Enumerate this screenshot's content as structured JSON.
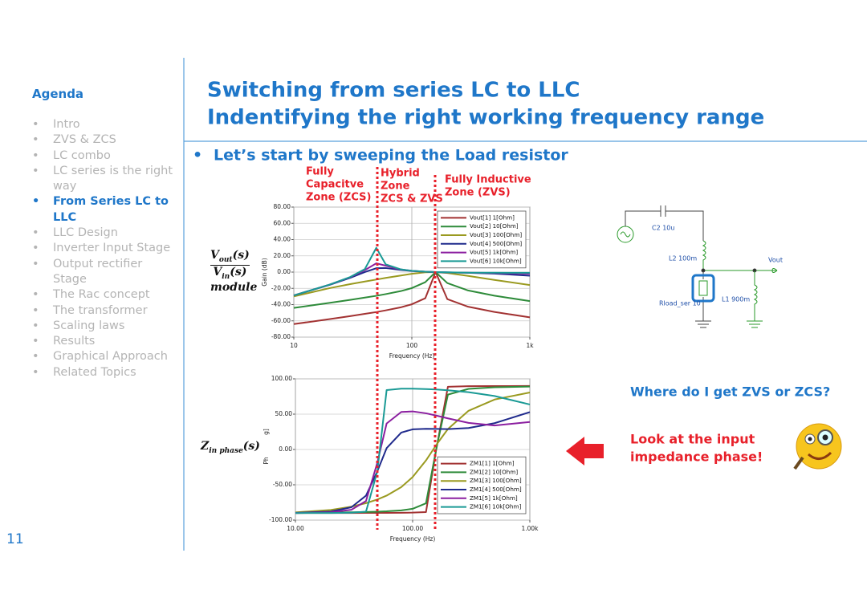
{
  "sidebar": {
    "title": "Agenda",
    "active": 4,
    "items": [
      "Intro",
      "ZVS & ZCS",
      "LC combo",
      "LC series is the right way",
      "From Series LC to LLC",
      "LLC Design",
      "Inverter Input Stage",
      "Output rectifier Stage",
      "The Rac concept",
      "The transformer",
      "Scaling laws",
      "Results",
      "Graphical Approach",
      "Related Topics"
    ]
  },
  "header": {
    "title_lines": [
      "Switching from series LC to LLC",
      "Indentifying the right working frequency range"
    ]
  },
  "bullet": "Let’s start by sweeping the Load resistor",
  "zones": [
    [
      "Fully",
      "Capacitve",
      "Zone (ZCS)"
    ],
    [
      "Hybrid",
      "Zone",
      "ZCS & ZVS"
    ],
    [
      "Fully Inductive",
      "Zone (ZVS)"
    ]
  ],
  "gain_label": {
    "num": [
      "V",
      "out",
      "(s)"
    ],
    "den": [
      "V",
      "in",
      "(s)"
    ],
    "word": "module"
  },
  "phase_label": [
    "Z",
    "in phase",
    "(s)"
  ],
  "chart_data": [
    {
      "type": "line",
      "x_label": "Frequency (Hz)",
      "y_label": "Gain (dB)",
      "log_x": true,
      "grid": true,
      "legend": "upper right",
      "x": [
        10,
        20,
        30,
        40,
        50,
        60,
        80,
        100,
        130,
        159,
        200,
        300,
        500,
        1000
      ],
      "xlim": [
        10,
        1000
      ],
      "xticks": [
        10,
        100,
        {
          "value": 1000,
          "label": "1k"
        }
      ],
      "ylim": [
        -80,
        80
      ],
      "yticks": [
        {
          "value": 80,
          "label": "80.00"
        },
        {
          "value": 60,
          "label": "60.00"
        },
        {
          "value": 40,
          "label": "40.00"
        },
        {
          "value": 20,
          "label": "20.00"
        },
        {
          "value": 0,
          "label": "0.00"
        },
        {
          "value": -20,
          "label": "-20.00"
        },
        {
          "value": -40,
          "label": "-40.00"
        },
        {
          "value": -60,
          "label": "-60.00"
        },
        {
          "value": -80,
          "label": "-80.00"
        }
      ],
      "series": [
        {
          "name": "Vout[1]  1[Ohm]",
          "color": "#a23232",
          "values": [
            -64.0,
            -57.9,
            -54.2,
            -51.4,
            -49.2,
            -47.1,
            -43.5,
            -39.6,
            -32.2,
            0,
            -33.3,
            -42.6,
            -49.0,
            -55.7
          ]
        },
        {
          "name": "Vout[2]  10[Ohm]",
          "color": "#2e8b3a",
          "values": [
            -44.1,
            -37.9,
            -34.2,
            -31.4,
            -29.2,
            -27.1,
            -23.5,
            -19.7,
            -12.4,
            0,
            -13.5,
            -22.6,
            -29.0,
            -35.7
          ]
        },
        {
          "name": "Vout[3]  100[Ohm]",
          "color": "#9a9a20",
          "values": [
            -29.9,
            -19.8,
            -14.8,
            -11.6,
            -9.2,
            -7.2,
            -4.3,
            -2.1,
            -0.2,
            0,
            -1.1,
            -4.7,
            -9.6,
            -15.9
          ]
        },
        {
          "name": "Vout[4]  500[Ohm]",
          "color": "#1f2a8c",
          "values": [
            -28.7,
            -15.8,
            -7.1,
            0.1,
            4.8,
            5.0,
            2.7,
            1.4,
            0.5,
            0,
            -0.4,
            -0.9,
            -1.8,
            -4.4
          ]
        },
        {
          "name": "Vout[5]  1k[Ohm]",
          "color": "#8b1fa0",
          "values": [
            -28.7,
            -15.5,
            -6.3,
            2.5,
            10.8,
            7.9,
            3.3,
            1.6,
            0.5,
            0,
            -0.4,
            -0.7,
            -1.1,
            -2.0
          ]
        },
        {
          "name": "Vout[6]  10k[Ohm]",
          "color": "#1a9a95",
          "values": [
            -28.7,
            -15.5,
            -6.1,
            3.7,
            29.9,
            9.6,
            3.5,
            1.6,
            0.5,
            0,
            -0.3,
            -0.7,
            -0.8,
            -0.9
          ]
        }
      ]
    },
    {
      "type": "line",
      "x_label": "Frequency (Hz)",
      "y_label": "Ph",
      "y_label_tail": "g]",
      "log_x": true,
      "grid": true,
      "legend": "lower right",
      "x": [
        10,
        20,
        30,
        40,
        50,
        60,
        80,
        100,
        130,
        159,
        200,
        300,
        500,
        1000
      ],
      "xlim": [
        10,
        1000
      ],
      "xticks": [
        {
          "value": 10,
          "label": "10.00"
        },
        {
          "value": 100,
          "label": "100.00"
        },
        {
          "value": 1000,
          "label": "1.00k"
        }
      ],
      "ylim": [
        -100,
        100
      ],
      "yticks": [
        {
          "value": 100,
          "label": "100.00"
        },
        {
          "value": 50,
          "label": "50.00"
        },
        {
          "value": 0,
          "label": "0.00"
        },
        {
          "value": -50,
          "label": "-50.00"
        },
        {
          "value": -100,
          "label": "-100.00"
        }
      ],
      "series": [
        {
          "name": "ZM1[1]  1[Ohm]",
          "color": "#a23232",
          "values": [
            -90.0,
            -89.9,
            -89.9,
            -89.8,
            -89.8,
            -89.7,
            -89.6,
            -89.4,
            -88.6,
            0,
            88.8,
            89.6,
            89.8,
            89.9
          ]
        },
        {
          "name": "ZM1[2]  10[Ohm]",
          "color": "#2e8b3a",
          "values": [
            -89.6,
            -89.3,
            -88.9,
            -88.5,
            -88.0,
            -87.5,
            -86.2,
            -84.0,
            -76.2,
            0.5,
            77.7,
            85.8,
            88.0,
            89.1
          ]
        },
        {
          "name": "ZM1[3]  100[Ohm]",
          "color": "#9a9a20",
          "values": [
            -89.1,
            -85.6,
            -81.0,
            -76.0,
            -70.8,
            -65.3,
            -53.3,
            -39.1,
            -15.5,
            6.4,
            29.0,
            54.8,
            70.7,
            80.7
          ]
        },
        {
          "name": "ZM1[4]  500[Ohm]",
          "color": "#1f2a8c",
          "values": [
            -89.8,
            -87.9,
            -81.8,
            -65.4,
            -30.9,
            1.9,
            23.9,
            28.5,
            29.3,
            29.1,
            28.9,
            30.4,
            37.2,
            52.9
          ]
        },
        {
          "name": "ZM1[5]  1k[Ohm]",
          "color": "#8b1fa0",
          "values": [
            -89.9,
            -88.9,
            -85.4,
            -73.0,
            -18.6,
            36.8,
            53.1,
            53.9,
            51.2,
            48.0,
            44.0,
            37.6,
            33.9,
            38.9
          ]
        },
        {
          "name": "ZM1[6]  10k[Ohm]",
          "color": "#1a9a95",
          "values": [
            -90.0,
            -89.9,
            -89.5,
            -88.0,
            -31.0,
            84.1,
            86.1,
            86.1,
            85.5,
            84.9,
            83.8,
            81.1,
            75.7,
            63.7
          ]
        }
      ]
    }
  ],
  "circuit": {
    "c2": "C2 10u",
    "l2": "L2 100m",
    "vout": "Vout",
    "rload": "Rload_ser 10",
    "l1": "L1 900m"
  },
  "callout": {
    "question": "Where do I get ZVS or ZCS?",
    "answer_lines": [
      "Look at the input",
      "impedance phase!"
    ]
  },
  "page_number": "11"
}
